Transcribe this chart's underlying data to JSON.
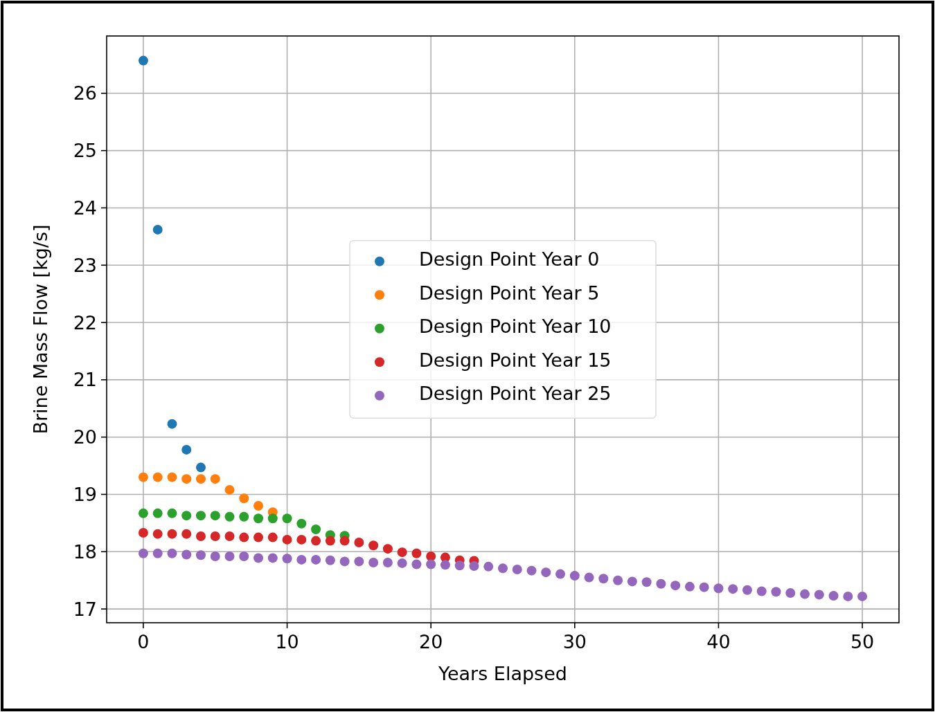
{
  "chart_data": {
    "type": "scatter",
    "xlabel": "Years Elapsed",
    "ylabel": "Brine Mass Flow [kg/s]",
    "xlim": [
      -2.55,
      52.55
    ],
    "ylim": [
      16.76,
      27.0
    ],
    "xticks": [
      0,
      10,
      20,
      30,
      40,
      50
    ],
    "yticks": [
      17,
      18,
      19,
      20,
      21,
      22,
      23,
      24,
      25,
      26
    ],
    "grid": true,
    "legend": "center",
    "marker": "circle",
    "series": [
      {
        "name": "Design Point Year 0",
        "color": "#1f77b4",
        "x": [
          0,
          1,
          2,
          3,
          4
        ],
        "values": [
          26.57,
          23.62,
          20.23,
          19.78,
          19.47
        ]
      },
      {
        "name": "Design Point Year 5",
        "color": "#ff7f0e",
        "x": [
          0,
          1,
          2,
          3,
          4,
          5,
          6,
          7,
          8,
          9
        ],
        "values": [
          19.3,
          19.3,
          19.3,
          19.27,
          19.27,
          19.27,
          19.08,
          18.93,
          18.8,
          18.69
        ]
      },
      {
        "name": "Design Point Year 10",
        "color": "#2ca02c",
        "x": [
          0,
          1,
          2,
          3,
          4,
          5,
          6,
          7,
          8,
          9,
          10,
          11,
          12,
          13,
          14
        ],
        "values": [
          18.67,
          18.67,
          18.67,
          18.63,
          18.63,
          18.63,
          18.61,
          18.61,
          18.58,
          18.58,
          18.58,
          18.49,
          18.39,
          18.29,
          18.28
        ]
      },
      {
        "name": "Design Point Year 15",
        "color": "#d62728",
        "x": [
          0,
          1,
          2,
          3,
          4,
          5,
          6,
          7,
          8,
          9,
          10,
          11,
          12,
          13,
          14,
          15,
          16,
          17,
          18,
          19,
          20,
          21,
          22,
          23
        ],
        "values": [
          18.33,
          18.31,
          18.31,
          18.31,
          18.27,
          18.27,
          18.27,
          18.25,
          18.25,
          18.25,
          18.21,
          18.21,
          18.19,
          18.19,
          18.19,
          18.16,
          18.11,
          18.05,
          17.99,
          17.97,
          17.92,
          17.9,
          17.85,
          17.84
        ]
      },
      {
        "name": "Design Point Year 25",
        "color": "#9467bd",
        "x": [
          0,
          1,
          2,
          3,
          4,
          5,
          6,
          7,
          8,
          9,
          10,
          11,
          12,
          13,
          14,
          15,
          16,
          17,
          18,
          19,
          20,
          21,
          22,
          23,
          24,
          25,
          26,
          27,
          28,
          29,
          30,
          31,
          32,
          33,
          34,
          35,
          36,
          37,
          38,
          39,
          40,
          41,
          42,
          43,
          44,
          45,
          46,
          47,
          48,
          49,
          50
        ],
        "values": [
          17.97,
          17.97,
          17.97,
          17.95,
          17.94,
          17.92,
          17.92,
          17.92,
          17.89,
          17.89,
          17.88,
          17.86,
          17.86,
          17.85,
          17.83,
          17.83,
          17.81,
          17.81,
          17.8,
          17.78,
          17.78,
          17.77,
          17.76,
          17.75,
          17.74,
          17.71,
          17.69,
          17.67,
          17.64,
          17.61,
          17.58,
          17.55,
          17.53,
          17.5,
          17.48,
          17.47,
          17.44,
          17.41,
          17.39,
          17.38,
          17.36,
          17.35,
          17.33,
          17.31,
          17.3,
          17.28,
          17.26,
          17.25,
          17.23,
          17.22,
          17.22
        ]
      }
    ]
  }
}
